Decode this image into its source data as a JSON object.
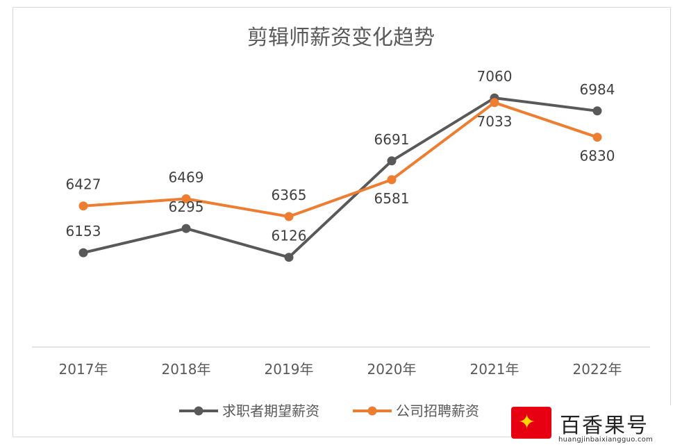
{
  "chart_data": {
    "type": "line",
    "title": "剪辑师薪资变化趋势",
    "categories": [
      "2017年",
      "2018年",
      "2019年",
      "2020年",
      "2021年",
      "2022年"
    ],
    "series": [
      {
        "name": "求职者期望薪资",
        "color": "#595959",
        "values": [
          6153,
          6295,
          6126,
          6691,
          7060,
          6984
        ]
      },
      {
        "name": "公司招聘薪资",
        "color": "#ed7d31",
        "values": [
          6427,
          6469,
          6365,
          6581,
          7033,
          6830
        ]
      }
    ],
    "ylim": [
      5600,
      7150
    ],
    "grid": false,
    "legend": "bottom"
  },
  "watermark": {
    "brand_name": "百香果号",
    "url": "huangjinbaixiangguo.com"
  },
  "colors": {
    "axis": "#d9d9d9",
    "text": "#595959",
    "brand_red": "#e60012"
  }
}
